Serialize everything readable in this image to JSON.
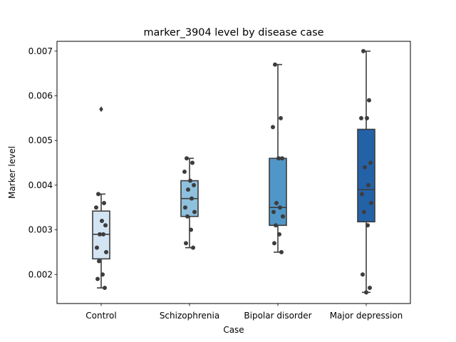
{
  "chart_data": {
    "type": "box",
    "title": "marker_3904 level by disease case",
    "xlabel": "Case",
    "ylabel": "Marker level",
    "ylim": [
      0.00135,
      0.00722
    ],
    "yticks": [
      0.002,
      0.003,
      0.004,
      0.005,
      0.006,
      0.007
    ],
    "ytick_labels": [
      "0.002",
      "0.003",
      "0.004",
      "0.005",
      "0.006",
      "0.007"
    ],
    "categories": [
      "Control",
      "Schizophrenia",
      "Bipolar disorder",
      "Major depression"
    ],
    "colors": [
      "#d3e4f3",
      "#8fc1de",
      "#5097c8",
      "#2462a8"
    ],
    "grid": false,
    "boxes": [
      {
        "category": "Control",
        "whislo": 0.0017,
        "q1": 0.00235,
        "med": 0.0029,
        "q3": 0.00342,
        "whishi": 0.0038,
        "fliers": [
          0.0057
        ]
      },
      {
        "category": "Schizophrenia",
        "whislo": 0.0026,
        "q1": 0.0033,
        "med": 0.0037,
        "q3": 0.0041,
        "whishi": 0.0046,
        "fliers": []
      },
      {
        "category": "Bipolar disorder",
        "whislo": 0.0025,
        "q1": 0.0031,
        "med": 0.0035,
        "q3": 0.0046,
        "whishi": 0.0067,
        "fliers": []
      },
      {
        "category": "Major depression",
        "whislo": 0.0016,
        "q1": 0.00318,
        "med": 0.0039,
        "q3": 0.00525,
        "whishi": 0.007,
        "fliers": []
      }
    ],
    "points": [
      {
        "category": "Control",
        "values": [
          0.0038,
          0.0036,
          0.0035,
          0.0032,
          0.0031,
          0.0029,
          0.0029,
          0.0026,
          0.0025,
          0.0023,
          0.002,
          0.0019,
          0.0017
        ]
      },
      {
        "category": "Schizophrenia",
        "values": [
          0.0046,
          0.0045,
          0.0043,
          0.0041,
          0.004,
          0.0039,
          0.0037,
          0.0035,
          0.0034,
          0.0033,
          0.003,
          0.0027,
          0.0026
        ]
      },
      {
        "category": "Bipolar disorder",
        "values": [
          0.0067,
          0.0055,
          0.0053,
          0.0046,
          0.0046,
          0.0036,
          0.0035,
          0.0034,
          0.0033,
          0.0031,
          0.0029,
          0.0027,
          0.0025
        ]
      },
      {
        "category": "Major depression",
        "values": [
          0.007,
          0.0059,
          0.0055,
          0.0055,
          0.0045,
          0.0044,
          0.004,
          0.0038,
          0.0036,
          0.0034,
          0.0031,
          0.002,
          0.0017,
          0.0016
        ]
      }
    ]
  }
}
